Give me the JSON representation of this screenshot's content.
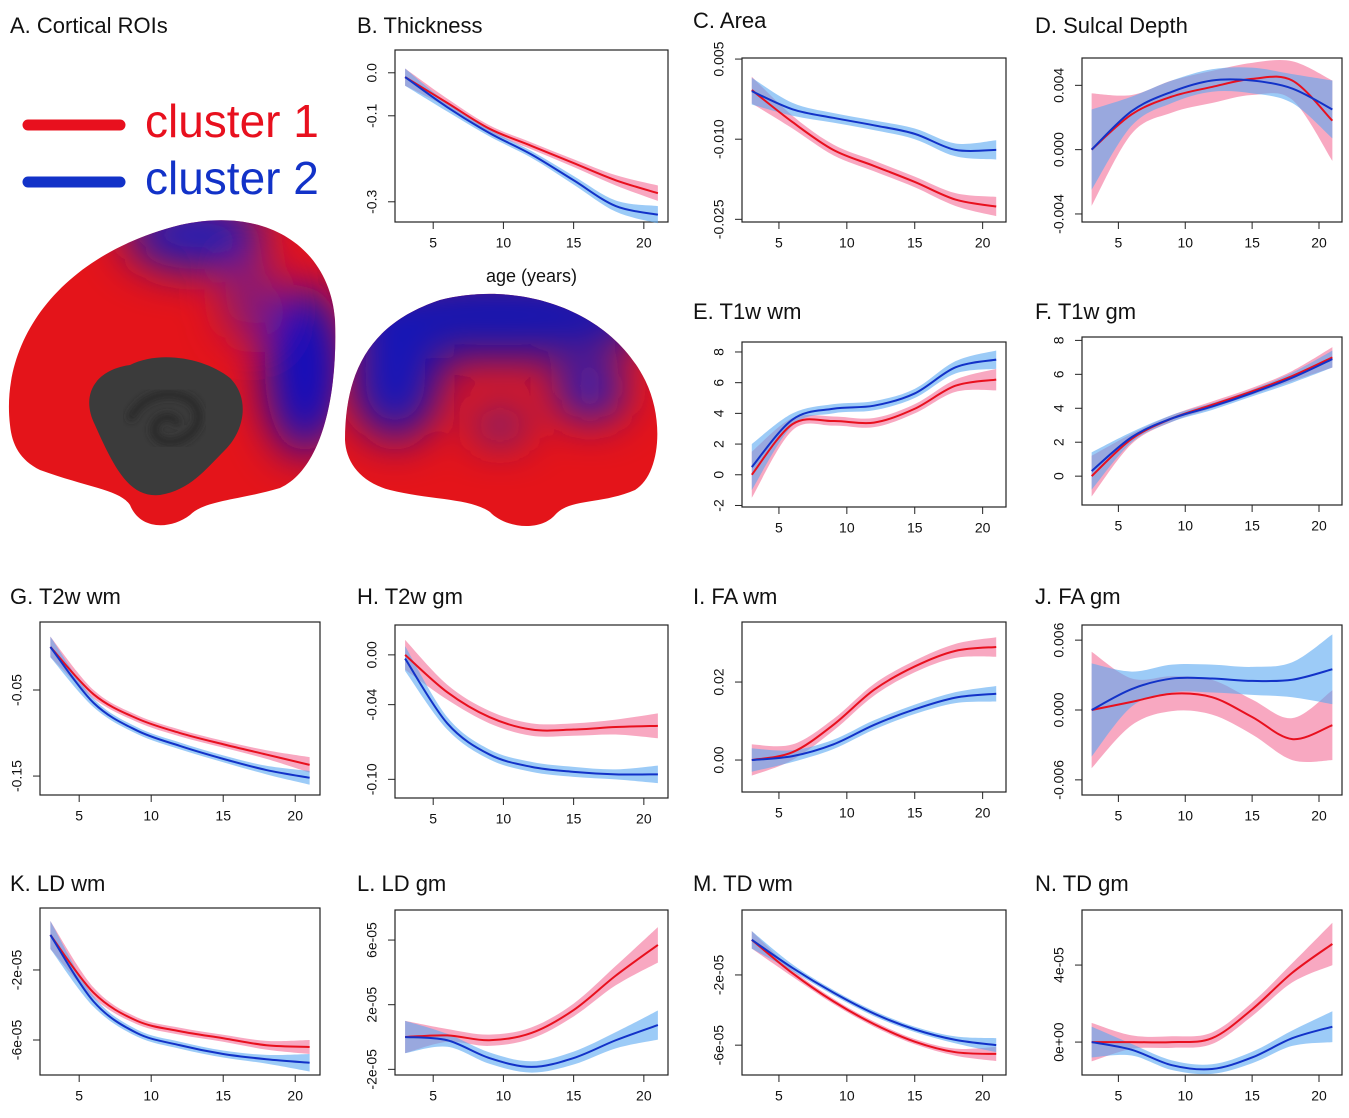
{
  "panel_a": {
    "title": "A. Cortical ROIs",
    "legend": [
      {
        "name": "cluster 1",
        "color": "#e8101e",
        "band_color": "#f46e98"
      },
      {
        "name": "cluster 2",
        "color": "#1232c8",
        "band_color": "#5aa8f2"
      }
    ]
  },
  "chart_data": [
    {
      "type": "line",
      "title": "B. Thickness",
      "xlabel": "age (years)",
      "x": [
        3,
        6,
        9,
        12,
        15,
        18,
        21
      ],
      "xlim": [
        2.28,
        21.72
      ],
      "xticks": [
        5,
        10,
        15,
        20
      ],
      "ylim": [
        -0.347,
        0.053
      ],
      "yticks": [
        {
          "value": 0,
          "label": "0.0"
        },
        -0.1,
        -0.3
      ],
      "series": [
        {
          "values": [
            -0.01,
            -0.07,
            -0.13,
            -0.17,
            -0.21,
            -0.25,
            -0.28
          ],
          "ci": [
            0.02,
            0.01,
            0.008,
            0.008,
            0.009,
            0.012,
            0.018
          ]
        },
        {
          "values": [
            -0.01,
            -0.08,
            -0.14,
            -0.19,
            -0.25,
            -0.31,
            -0.33
          ],
          "ci": [
            0.02,
            0.01,
            0.008,
            0.008,
            0.01,
            0.013,
            0.02
          ]
        }
      ]
    },
    {
      "type": "line",
      "title": "C. Area",
      "x": [
        3,
        6,
        9,
        12,
        15,
        18,
        21
      ],
      "xlim": [
        2.28,
        21.72
      ],
      "xticks": [
        5,
        10,
        15,
        20
      ],
      "ylim": [
        -0.0255,
        0.0052
      ],
      "yticks": [
        0.005,
        {
          "value": -0.01,
          "label": "-0.010"
        },
        -0.025
      ],
      "series": [
        {
          "values": [
            -0.0008,
            -0.0068,
            -0.012,
            -0.015,
            -0.018,
            -0.0213,
            -0.0226
          ],
          "ci": [
            0.0025,
            0.0012,
            0.001,
            0.001,
            0.001,
            0.0012,
            0.0018
          ]
        },
        {
          "values": [
            -0.001,
            -0.0044,
            -0.006,
            -0.0074,
            -0.009,
            -0.012,
            -0.012
          ],
          "ci": [
            0.0025,
            0.0012,
            0.0009,
            0.0009,
            0.001,
            0.0012,
            0.0018
          ]
        }
      ]
    },
    {
      "type": "line",
      "title": "D. Sulcal Depth",
      "x": [
        3,
        6,
        9,
        12,
        15,
        18,
        21
      ],
      "xlim": [
        2.28,
        21.72
      ],
      "xticks": [
        5,
        10,
        15,
        20
      ],
      "ylim": [
        -0.0045,
        0.0057
      ],
      "yticks": [
        0.004,
        {
          "value": 0,
          "label": "0.000"
        },
        -0.004
      ],
      "series": [
        {
          "values": [
            0,
            0.0022,
            0.0033,
            0.0039,
            0.0044,
            0.0043,
            0.0018
          ],
          "ci": [
            0.0035,
            0.0012,
            0.001,
            0.001,
            0.001,
            0.0012,
            0.0025
          ]
        },
        {
          "values": [
            0,
            0.0024,
            0.0036,
            0.0043,
            0.0043,
            0.0038,
            0.0025
          ],
          "ci": [
            0.0025,
            0.0009,
            0.0007,
            0.0007,
            0.0008,
            0.0009,
            0.0018
          ]
        }
      ]
    },
    {
      "type": "line",
      "title": "E. T1w wm",
      "x": [
        3,
        6,
        9,
        12,
        15,
        18,
        21
      ],
      "xlim": [
        2.28,
        21.72
      ],
      "xticks": [
        5,
        10,
        15,
        20
      ],
      "ylim": [
        -2.1,
        8.65
      ],
      "yticks": [
        -2,
        0,
        2,
        4,
        6,
        8
      ],
      "series": [
        {
          "values": [
            0,
            3.3,
            3.5,
            3.4,
            4.3,
            5.8,
            6.2
          ],
          "ci": [
            1.5,
            0.4,
            0.3,
            0.3,
            0.3,
            0.4,
            0.7
          ]
        },
        {
          "values": [
            0.5,
            3.6,
            4.3,
            4.5,
            5.3,
            7.0,
            7.5
          ],
          "ci": [
            1.5,
            0.4,
            0.3,
            0.3,
            0.3,
            0.4,
            0.6
          ]
        }
      ]
    },
    {
      "type": "line",
      "title": "F. T1w gm",
      "x": [
        3,
        6,
        9,
        12,
        15,
        18,
        21
      ],
      "xlim": [
        2.28,
        21.72
      ],
      "xticks": [
        5,
        10,
        15,
        20
      ],
      "ylim": [
        -1.7,
        8.2
      ],
      "yticks": [
        0,
        2,
        4,
        6,
        8
      ],
      "series": [
        {
          "values": [
            0,
            2.2,
            3.4,
            4.2,
            5.0,
            5.9,
            7.0
          ],
          "ci": [
            1.2,
            0.3,
            0.2,
            0.2,
            0.2,
            0.3,
            0.6
          ]
        },
        {
          "values": [
            0.3,
            2.3,
            3.4,
            4.1,
            4.9,
            5.8,
            6.9
          ],
          "ci": [
            1.1,
            0.3,
            0.2,
            0.2,
            0.2,
            0.3,
            0.5
          ]
        }
      ]
    },
    {
      "type": "line",
      "title": "G. T2w wm",
      "x": [
        3,
        6,
        9,
        12,
        15,
        18,
        21
      ],
      "xlim": [
        2.28,
        21.72
      ],
      "xticks": [
        5,
        10,
        15,
        20
      ],
      "ylim": [
        -0.172,
        0.029
      ],
      "yticks": [
        -0.05,
        -0.15
      ],
      "series": [
        {
          "values": [
            0,
            -0.055,
            -0.083,
            -0.1,
            -0.113,
            -0.125,
            -0.137
          ],
          "ci": [
            0.012,
            0.005,
            0.004,
            0.004,
            0.004,
            0.005,
            0.009
          ]
        },
        {
          "values": [
            0,
            -0.065,
            -0.097,
            -0.115,
            -0.13,
            -0.143,
            -0.152
          ],
          "ci": [
            0.012,
            0.005,
            0.004,
            0.004,
            0.004,
            0.005,
            0.008
          ]
        }
      ]
    },
    {
      "type": "line",
      "title": "H. T2w gm",
      "x": [
        3,
        6,
        9,
        12,
        15,
        18,
        21
      ],
      "xlim": [
        2.28,
        21.72
      ],
      "xticks": [
        5,
        10,
        15,
        20
      ],
      "ylim": [
        -0.115,
        0.024
      ],
      "yticks": [
        {
          "value": 0,
          "label": "0.00"
        },
        -0.04,
        {
          "value": -0.1,
          "label": "-0.10"
        }
      ],
      "series": [
        {
          "values": [
            0,
            -0.03,
            -0.05,
            -0.06,
            -0.06,
            -0.058,
            -0.057
          ],
          "ci": [
            0.012,
            0.006,
            0.005,
            0.005,
            0.005,
            0.006,
            0.01
          ]
        },
        {
          "values": [
            -0.003,
            -0.055,
            -0.08,
            -0.09,
            -0.094,
            -0.096,
            -0.096
          ],
          "ci": [
            0.01,
            0.005,
            0.004,
            0.004,
            0.004,
            0.004,
            0.007
          ]
        }
      ]
    },
    {
      "type": "line",
      "title": "I. FA wm",
      "x": [
        3,
        6,
        9,
        12,
        15,
        18,
        21
      ],
      "xlim": [
        2.28,
        21.72
      ],
      "xticks": [
        5,
        10,
        15,
        20
      ],
      "ylim": [
        -0.0082,
        0.0354
      ],
      "yticks": [
        {
          "value": 0,
          "label": "0.00"
        },
        0.02
      ],
      "series": [
        {
          "values": [
            0,
            0.002,
            0.009,
            0.018,
            0.024,
            0.028,
            0.029
          ],
          "ci": [
            0.004,
            0.002,
            0.0015,
            0.0015,
            0.0015,
            0.0018,
            0.0025
          ]
        },
        {
          "values": [
            0,
            0.001,
            0.004,
            0.009,
            0.013,
            0.016,
            0.017
          ],
          "ci": [
            0.003,
            0.0015,
            0.0012,
            0.0012,
            0.0012,
            0.0014,
            0.002
          ]
        }
      ]
    },
    {
      "type": "line",
      "title": "J. FA gm",
      "x": [
        3,
        6,
        9,
        12,
        15,
        18,
        21
      ],
      "xlim": [
        2.28,
        21.72
      ],
      "xticks": [
        5,
        10,
        15,
        20
      ],
      "ylim": [
        -0.0073,
        0.0073
      ],
      "yticks": [
        0.006,
        {
          "value": 0,
          "label": "0.000"
        },
        -0.006
      ],
      "series": [
        {
          "values": [
            0,
            0.0007,
            0.0014,
            0.0011,
            -0.0006,
            -0.0025,
            -0.0013
          ],
          "ci": [
            0.005,
            0.002,
            0.0015,
            0.0015,
            0.0015,
            0.0018,
            0.003
          ]
        },
        {
          "values": [
            0,
            0.0018,
            0.0027,
            0.0027,
            0.0025,
            0.0026,
            0.0035
          ],
          "ci": [
            0.004,
            0.0015,
            0.0012,
            0.0012,
            0.0012,
            0.0015,
            0.003
          ]
        }
      ]
    },
    {
      "type": "line",
      "title": "K. LD wm",
      "x": [
        3,
        6,
        9,
        12,
        15,
        18,
        21
      ],
      "xlim": [
        2.28,
        21.72
      ],
      "xticks": [
        5,
        10,
        15,
        20
      ],
      "ylim": [
        -8e-05,
        1.54e-05
      ],
      "yticks": [
        {
          "value": -2e-05,
          "label": "-2e-05"
        },
        {
          "value": -6e-05,
          "label": "-6e-05"
        }
      ],
      "series": [
        {
          "values": [
            0,
            -3.3e-05,
            -4.9e-05,
            -5.5e-05,
            -5.9e-05,
            -6.3e-05,
            -6.4e-05
          ],
          "ci": [
            8e-06,
            3e-06,
            2e-06,
            2e-06,
            2e-06,
            2.5e-06,
            4e-06
          ]
        },
        {
          "values": [
            0,
            -3.8e-05,
            -5.6e-05,
            -6.3e-05,
            -6.8e-05,
            -7.1e-05,
            -7.3e-05
          ],
          "ci": [
            8e-06,
            3e-06,
            2e-06,
            2e-06,
            2e-06,
            2.5e-06,
            5e-06
          ]
        }
      ]
    },
    {
      "type": "line",
      "title": "L. LD gm",
      "x": [
        3,
        6,
        9,
        12,
        15,
        18,
        21
      ],
      "xlim": [
        2.28,
        21.72
      ],
      "xticks": [
        5,
        10,
        15,
        20
      ],
      "ylim": [
        -2.35e-05,
        7.86e-05
      ],
      "yticks": [
        {
          "value": 6e-05,
          "label": "6e-05"
        },
        {
          "value": 2e-05,
          "label": "2e-05"
        },
        {
          "value": -2e-05,
          "label": "-2e-05"
        }
      ],
      "series": [
        {
          "values": [
            0,
            1e-06,
            -2e-06,
            2.5e-06,
            1.67e-05,
            3.8e-05,
            5.7e-05
          ],
          "ci": [
            1e-05,
            4e-06,
            3.5e-06,
            3.5e-06,
            4e-06,
            6e-06,
            1.1e-05
          ]
        },
        {
          "values": [
            0,
            -2e-06,
            -1.3e-05,
            -1.85e-05,
            -1.3e-05,
            -2e-06,
            7.4e-06
          ],
          "ci": [
            1e-05,
            4e-06,
            3.5e-06,
            3.5e-06,
            4e-06,
            5e-06,
            9e-06
          ]
        }
      ]
    },
    {
      "type": "line",
      "title": "M. TD wm",
      "x": [
        3,
        6,
        9,
        12,
        15,
        18,
        21
      ],
      "xlim": [
        2.28,
        21.72
      ],
      "xticks": [
        5,
        10,
        15,
        20
      ],
      "ylim": [
        -7.7e-05,
        1.7e-05
      ],
      "yticks": [
        {
          "value": -2e-05,
          "label": "-2e-05"
        },
        {
          "value": -6e-05,
          "label": "-6e-05"
        }
      ],
      "series": [
        {
          "values": [
            0,
            -1.9e-05,
            -3.5e-05,
            -4.8e-05,
            -5.8e-05,
            -6.4e-05,
            -6.5e-05
          ],
          "ci": [
            5e-06,
            2e-06,
            1.5e-06,
            1.5e-06,
            1.5e-06,
            2e-06,
            4e-06
          ]
        },
        {
          "values": [
            0,
            -1.6e-05,
            -3e-05,
            -4.2e-05,
            -5.1e-05,
            -5.7e-05,
            -6e-05
          ],
          "ci": [
            5e-06,
            2e-06,
            1.5e-06,
            1.5e-06,
            1.5e-06,
            2e-06,
            4e-06
          ]
        }
      ]
    },
    {
      "type": "line",
      "title": "N. TD gm",
      "x": [
        3,
        6,
        9,
        12,
        15,
        18,
        21
      ],
      "xlim": [
        2.28,
        21.72
      ],
      "xticks": [
        5,
        10,
        15,
        20
      ],
      "ylim": [
        -1.71e-05,
        6.86e-05
      ],
      "yticks": [
        {
          "value": 4e-05,
          "label": "4e-05"
        },
        {
          "value": 0,
          "label": "0e+00"
        }
      ],
      "series": [
        {
          "values": [
            0,
            0,
            0,
            2e-06,
            1.7e-05,
            3.6e-05,
            5.1e-05
          ],
          "ci": [
            1e-05,
            3.5e-06,
            3e-06,
            3e-06,
            3.5e-06,
            5e-06,
            1.1e-05
          ]
        },
        {
          "values": [
            0,
            -4e-06,
            -1.2e-05,
            -1.4e-05,
            -8e-06,
            2e-06,
            8e-06
          ],
          "ci": [
            8e-06,
            3e-06,
            2.5e-06,
            2.5e-06,
            3e-06,
            4e-06,
            8e-06
          ]
        }
      ]
    }
  ]
}
